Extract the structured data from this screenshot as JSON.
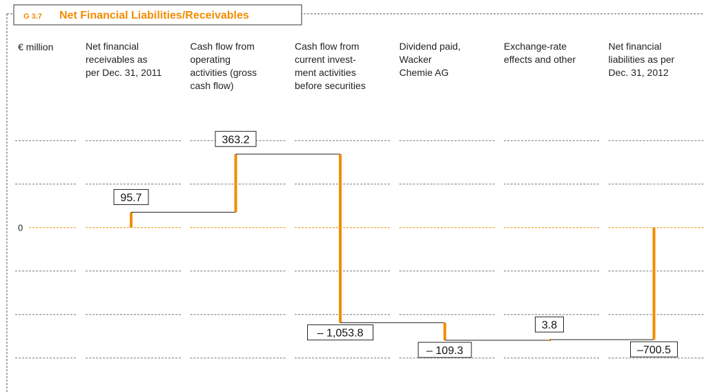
{
  "chart_data": {
    "type": "waterfall",
    "code": "G 3.7",
    "title": "Net Financial Liabilities/Receivables",
    "unit_label": "€ million",
    "categories": [
      "Net financial\nreceivables as\nper Dec. 31, 2011",
      "Cash flow from\noperating\nactivities (gross\ncash flow)",
      "Cash flow from\ncurrent invest-\nment activities\nbefore securities",
      "Dividend paid,\nWacker\nChemie AG",
      "Exchange-rate\neffects and other",
      "Net financial\nliabilities as per\nDec. 31, 2012"
    ],
    "measure": [
      "absolute",
      "relative",
      "relative",
      "relative",
      "relative",
      "total"
    ],
    "values": [
      95.7,
      363.2,
      -1053.8,
      -109.3,
      3.8,
      -700.5
    ],
    "value_labels": [
      "95.7",
      "363.2",
      "– 1,053.8",
      "– 109.3",
      "3.8",
      "–700.5"
    ],
    "color": "#f28c00",
    "ylim": [
      -950,
      650
    ],
    "yticks": [
      0
    ],
    "grid": true
  }
}
